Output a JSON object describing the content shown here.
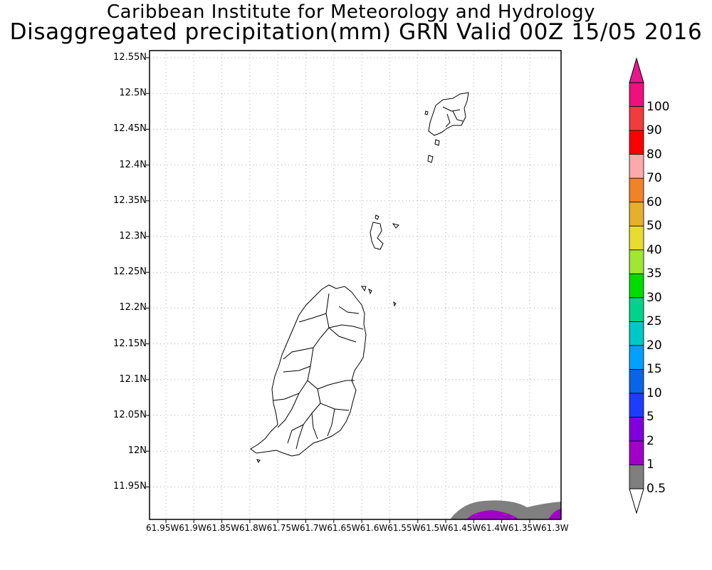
{
  "header": {
    "line1": "Caribbean Institute for Meteorology and Hydrology",
    "line2": "Disaggregated precipitation(mm) GRN Valid 00Z 15/05 2016"
  },
  "axes": {
    "latitude_labels": [
      "12.55N",
      "12.5N",
      "12.45N",
      "12.4N",
      "12.35N",
      "12.3N",
      "12.25N",
      "12.2N",
      "12.15N",
      "12.1N",
      "12.05N",
      "12N",
      "11.95N"
    ],
    "longitude_labels_line": "61.95W61.9W61.85W61.8W61.75W61.7W61.65W61.6W61.55W61.5W61.45W61.4W61.35W61.3W"
  },
  "legend": {
    "labels": [
      "0.5",
      "1",
      "2",
      "5",
      "10",
      "15",
      "20",
      "25",
      "30",
      "35",
      "40",
      "50",
      "60",
      "70",
      "80",
      "90",
      "100"
    ],
    "colors": [
      "#7f7f7f",
      "#a000c8",
      "#8200dc",
      "#1e3cff",
      "#0a64e6",
      "#00a0ff",
      "#00c8c8",
      "#00d28c",
      "#00dc00",
      "#a0e632",
      "#e6dc32",
      "#e6af2d",
      "#f08228",
      "#faaaaa",
      "#fa0000",
      "#f03c3c",
      "#ef0f7f"
    ],
    "over_color": "#e6198c",
    "under_color": "#ffffff"
  },
  "map": {
    "features": [
      "grenada-island",
      "carriacou-island",
      "petite-martinique",
      "small-islets"
    ],
    "precip_areas": [
      {
        "class": "0.5-1",
        "color": "#7f7f7f"
      },
      {
        "class": "1-2",
        "color": "#a000c8"
      }
    ],
    "grid": "dotted"
  }
}
